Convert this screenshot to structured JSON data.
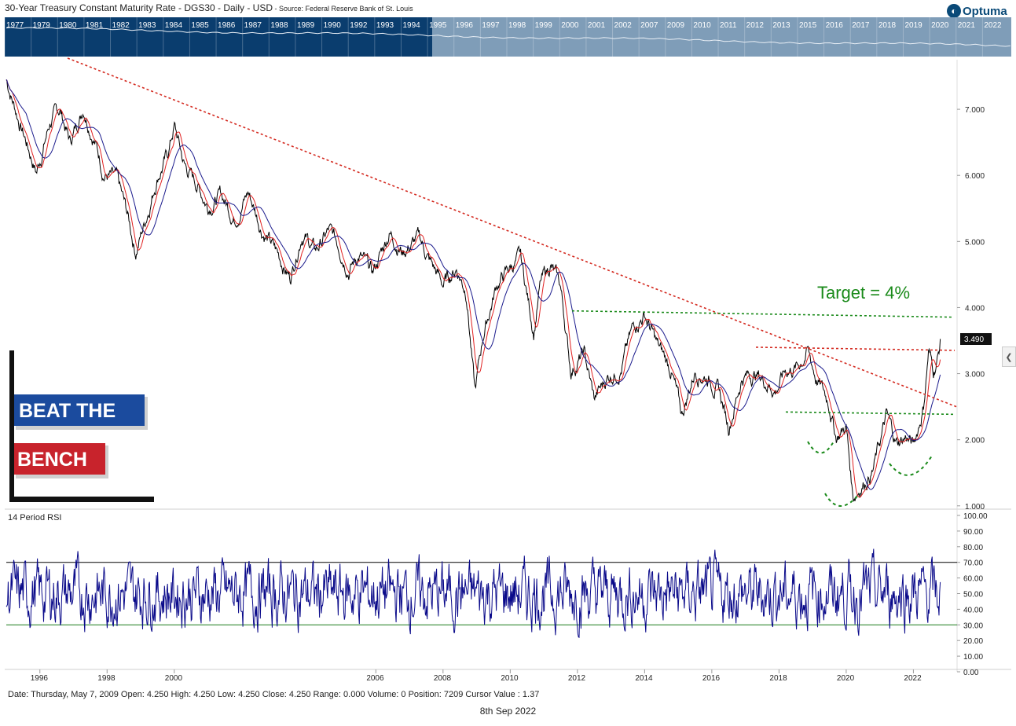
{
  "header": {
    "title": "30-Year Treasury Constant Maturity Rate - DGS30 - Daily - USD",
    "source": " - Source: Federal Reserve Bank of St. Louis"
  },
  "logo_text": "Optuma",
  "status_bar": "Date: Thursday, May 7, 2009 Open: 4.250 High: 4.250 Low: 4.250 Close: 4.250 Range: 0.000 Volume: 0 Position: 7209 Cursor Value : 1.37",
  "footer_date": "8th Sep 2022",
  "watermark": {
    "line1": "BEAT THE",
    "line2": "BENCH"
  },
  "colors": {
    "navigator_dark": "#0a3d6e",
    "navigator_light": "#7f9db8",
    "price": "#000000",
    "ma_fast": "#e02020",
    "ma_slow": "#1a1a8c",
    "trend_red": "#d42a20",
    "target_green": "#1a8a1a",
    "rsi": "#0a0a8a",
    "beat": "#1b4b9e",
    "bench": "#c8232c"
  },
  "chart_data": [
    {
      "type": "line",
      "title": "30-Year Treasury Constant Maturity Rate - DGS30 - Daily - USD",
      "navigator_years": [
        "1977",
        "1979",
        "1980",
        "1981",
        "1982",
        "1983",
        "1984",
        "1985",
        "1986",
        "1987",
        "1988",
        "1989",
        "1990",
        "1992",
        "1993",
        "1994",
        "1995",
        "1996",
        "1997",
        "1998",
        "1999",
        "2000",
        "2001",
        "2002",
        "2007",
        "2009",
        "2010",
        "2011",
        "2012",
        "2013",
        "2015",
        "2016",
        "2017",
        "2018",
        "2019",
        "2020",
        "2021",
        "2022"
      ],
      "x_ticks": [
        "1996",
        "1998",
        "2000",
        "2006",
        "2008",
        "2010",
        "2012",
        "2014",
        "2016",
        "2018",
        "2020",
        "2022"
      ],
      "y_ticks": [
        "7.000",
        "6.000",
        "5.000",
        "4.000",
        "3.000",
        "2.000",
        "1.000"
      ],
      "ylim": [
        0.95,
        7.75
      ],
      "last_value_label": "3.490",
      "series": [
        {
          "values": [
            [
              1995.0,
              7.45
            ],
            [
              1995.4,
              6.8
            ],
            [
              1995.9,
              6.05
            ],
            [
              1996.3,
              6.8
            ],
            [
              1996.6,
              7.0
            ],
            [
              1996.9,
              6.5
            ],
            [
              1997.3,
              7.05
            ],
            [
              1997.6,
              6.6
            ],
            [
              1997.9,
              6.05
            ],
            [
              1998.3,
              5.9
            ],
            [
              1998.6,
              5.4
            ],
            [
              1998.85,
              4.85
            ],
            [
              1999.1,
              5.25
            ],
            [
              1999.5,
              6.0
            ],
            [
              1999.8,
              6.3
            ],
            [
              2000.0,
              6.75
            ],
            [
              2000.3,
              6.15
            ],
            [
              2000.7,
              5.85
            ],
            [
              2001.0,
              5.55
            ],
            [
              2001.4,
              5.7
            ],
            [
              2001.8,
              5.35
            ],
            [
              2002.2,
              5.75
            ],
            [
              2002.6,
              5.2
            ],
            [
              2002.9,
              4.95
            ],
            [
              2003.2,
              4.7
            ],
            [
              2003.45,
              4.45
            ],
            [
              2003.8,
              5.15
            ],
            [
              2004.2,
              4.85
            ],
            [
              2004.6,
              5.15
            ],
            [
              2004.9,
              4.95
            ],
            [
              2005.2,
              4.6
            ],
            [
              2005.5,
              4.8
            ],
            [
              2005.9,
              4.5
            ],
            [
              2006.4,
              5.15
            ],
            [
              2006.8,
              4.85
            ],
            [
              2007.3,
              5.05
            ],
            [
              2007.6,
              4.7
            ],
            [
              2008.0,
              4.35
            ],
            [
              2008.4,
              4.6
            ],
            [
              2008.7,
              4.25
            ],
            [
              2008.95,
              2.7
            ],
            [
              2009.2,
              3.6
            ],
            [
              2009.6,
              4.35
            ],
            [
              2010.0,
              4.6
            ],
            [
              2010.3,
              4.75
            ],
            [
              2010.7,
              3.65
            ],
            [
              2010.9,
              4.35
            ],
            [
              2011.2,
              4.65
            ],
            [
              2011.5,
              4.3
            ],
            [
              2011.8,
              3.05
            ],
            [
              2012.2,
              3.3
            ],
            [
              2012.5,
              2.6
            ],
            [
              2012.9,
              2.95
            ],
            [
              2013.3,
              3.1
            ],
            [
              2013.7,
              3.75
            ],
            [
              2014.0,
              3.9
            ],
            [
              2014.4,
              3.4
            ],
            [
              2014.8,
              3.05
            ],
            [
              2015.1,
              2.35
            ],
            [
              2015.5,
              3.05
            ],
            [
              2015.9,
              2.95
            ],
            [
              2016.2,
              2.75
            ],
            [
              2016.5,
              2.2
            ],
            [
              2016.9,
              2.95
            ],
            [
              2017.3,
              3.0
            ],
            [
              2017.7,
              2.85
            ],
            [
              2017.9,
              2.75
            ],
            [
              2018.2,
              3.05
            ],
            [
              2018.55,
              3.1
            ],
            [
              2018.85,
              3.35
            ],
            [
              2019.1,
              2.95
            ],
            [
              2019.5,
              2.55
            ],
            [
              2019.7,
              2.05
            ],
            [
              2020.0,
              2.2
            ],
            [
              2020.2,
              1.15
            ],
            [
              2020.5,
              1.35
            ],
            [
              2020.8,
              1.55
            ],
            [
              2021.2,
              2.35
            ],
            [
              2021.5,
              1.95
            ],
            [
              2021.8,
              2.05
            ],
            [
              2022.0,
              1.9
            ],
            [
              2022.3,
              2.5
            ],
            [
              2022.45,
              3.35
            ],
            [
              2022.6,
              3.05
            ],
            [
              2022.75,
              3.3
            ],
            [
              2022.8,
              3.49
            ]
          ]
        }
      ],
      "annotations": {
        "target_text": "Target = 4%",
        "target_level": 3.95,
        "upper_resistance": 3.4,
        "lower_breakout": 2.42
      }
    },
    {
      "type": "line",
      "title": "14 Period RSI",
      "y_ticks": [
        "100.00",
        "90.00",
        "80.00",
        "70.00",
        "60.00",
        "50.00",
        "40.00",
        "30.00",
        "20.00",
        "10.00",
        "0.00"
      ],
      "ylim": [
        0,
        100
      ],
      "overbought": 70,
      "oversold": 30
    }
  ]
}
